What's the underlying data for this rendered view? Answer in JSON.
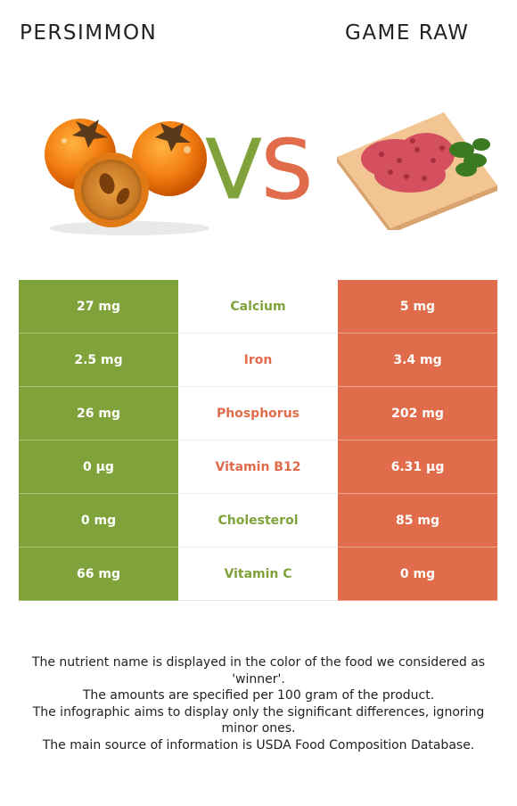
{
  "titles": {
    "left": "PERSIMMON",
    "right": "GAME RAW"
  },
  "vs": {
    "v": "V",
    "s": "S"
  },
  "colors": {
    "left": "#7fa33a",
    "right": "#e06c4b"
  },
  "images": {
    "left": "persimmon-fruits",
    "right": "raw-game-meat-on-cutting-board"
  },
  "rows": [
    {
      "left": "27 mg",
      "nutrient": "Calcium",
      "right": "5 mg",
      "winner": "left"
    },
    {
      "left": "2.5 mg",
      "nutrient": "Iron",
      "right": "3.4 mg",
      "winner": "right"
    },
    {
      "left": "26 mg",
      "nutrient": "Phosphorus",
      "right": "202 mg",
      "winner": "right"
    },
    {
      "left": "0 µg",
      "nutrient": "Vitamin B12",
      "right": "6.31 µg",
      "winner": "right"
    },
    {
      "left": "0 mg",
      "nutrient": "Cholesterol",
      "right": "85 mg",
      "winner": "left"
    },
    {
      "left": "66 mg",
      "nutrient": "Vitamin C",
      "right": "0 mg",
      "winner": "left"
    }
  ],
  "footnotes": [
    "The nutrient name is displayed in the color of the food we considered as 'winner'.",
    "The amounts are specified per 100 gram of the product.",
    "The infographic aims to display only the significant differences, ignoring minor ones.",
    "The main source of information is USDA Food Composition Database."
  ]
}
